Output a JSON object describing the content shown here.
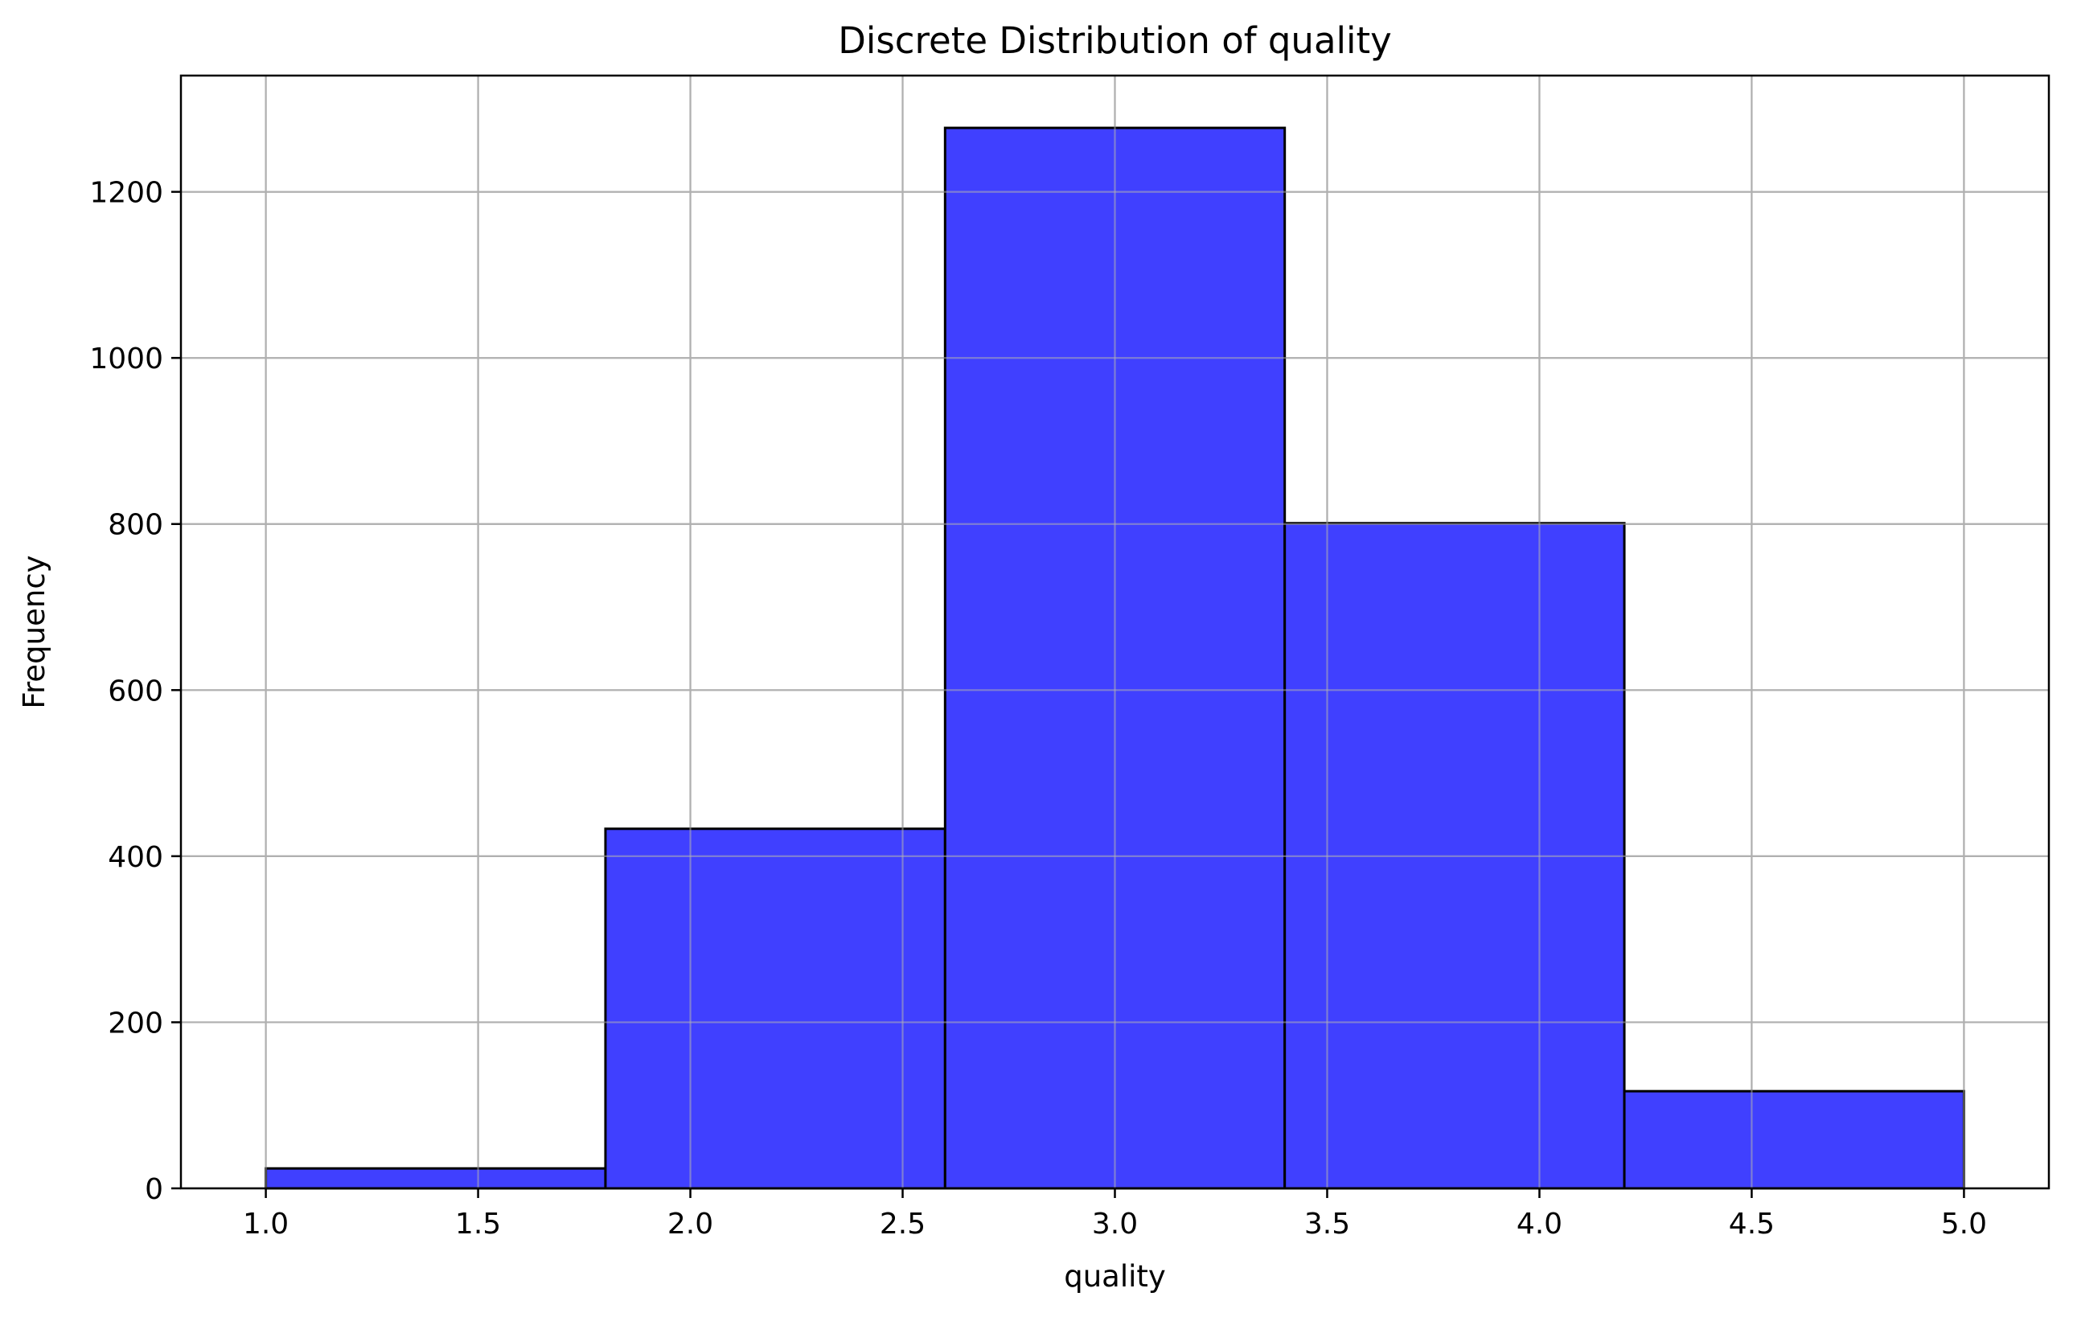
{
  "chart_data": {
    "type": "bar",
    "title": "Discrete Distribution of quality",
    "xlabel": "quality",
    "ylabel": "Frequency",
    "xlim": [
      0.8,
      5.2
    ],
    "ylim": [
      0,
      1340
    ],
    "grid": true,
    "xticks": [
      1.0,
      1.5,
      2.0,
      2.5,
      3.0,
      3.5,
      4.0,
      4.5,
      5.0
    ],
    "xtick_labels": [
      "1.0",
      "1.5",
      "2.0",
      "2.5",
      "3.0",
      "3.5",
      "4.0",
      "4.5",
      "5.0"
    ],
    "yticks": [
      0,
      200,
      400,
      600,
      800,
      1000,
      1200
    ],
    "ytick_labels": [
      "0",
      "200",
      "400",
      "600",
      "800",
      "1000",
      "1200"
    ],
    "bins": [
      {
        "x0": 1.0,
        "x1": 1.8,
        "value": 24
      },
      {
        "x0": 1.8,
        "x1": 2.6,
        "value": 433
      },
      {
        "x0": 2.6,
        "x1": 3.4,
        "value": 1277
      },
      {
        "x0": 3.4,
        "x1": 4.2,
        "value": 801
      },
      {
        "x0": 4.2,
        "x1": 5.0,
        "value": 117
      }
    ],
    "colors": {
      "bar_fill": "#4040ff",
      "bar_edge": "#000000",
      "grid": "#b0b0b0",
      "axis": "#000000"
    }
  }
}
